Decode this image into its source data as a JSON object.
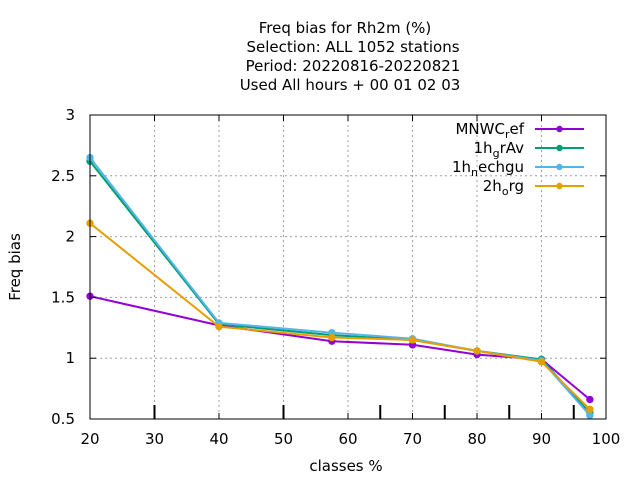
{
  "chart_data": {
    "type": "line",
    "title_lines": [
      "Freq bias  for Rh2m (%)",
      "Selection: ALL   1052 stations",
      "Period: 20220816-20220821",
      "Used  All hours  + 00 01 02 03"
    ],
    "xlabel": "classes %",
    "ylabel": "Freq bias",
    "xlim": [
      20,
      100
    ],
    "ylim": [
      0.5,
      3
    ],
    "x_ticks": [
      "20",
      "30",
      "40",
      "50",
      "60",
      "70",
      "80",
      "90",
      "100"
    ],
    "y_ticks": [
      "0.5",
      "1",
      "1.5",
      "2",
      "2.5",
      "3"
    ],
    "grid": true,
    "legend_position": "top-right",
    "x": [
      20,
      40,
      57.5,
      70,
      80,
      90,
      97.5
    ],
    "series": [
      {
        "name": "MNWC_ref",
        "legend": {
          "base": "MNWC",
          "sub": "r",
          "rest": "ef"
        },
        "color": "#9400d3",
        "values": [
          1.51,
          1.27,
          1.14,
          1.11,
          1.03,
          0.99,
          0.66
        ]
      },
      {
        "name": "1h_grAv",
        "legend": {
          "base": "1h",
          "sub": "g",
          "rest": "rAv"
        },
        "color": "#009e73",
        "values": [
          2.62,
          1.28,
          1.19,
          1.15,
          1.06,
          0.99,
          0.55
        ]
      },
      {
        "name": "1h_nechgu",
        "legend": {
          "base": "1h",
          "sub": "n",
          "rest": "echgu"
        },
        "color": "#56b4e9",
        "values": [
          2.65,
          1.29,
          1.21,
          1.16,
          1.06,
          0.98,
          0.53
        ]
      },
      {
        "name": "2h_org",
        "legend": {
          "base": "2h",
          "sub": "o",
          "rest": "rg"
        },
        "color": "#e69f00",
        "values": [
          2.11,
          1.26,
          1.17,
          1.15,
          1.06,
          0.97,
          0.58
        ]
      }
    ],
    "bottom_ticks": [
      30,
      50,
      65,
      75,
      85,
      95
    ]
  }
}
